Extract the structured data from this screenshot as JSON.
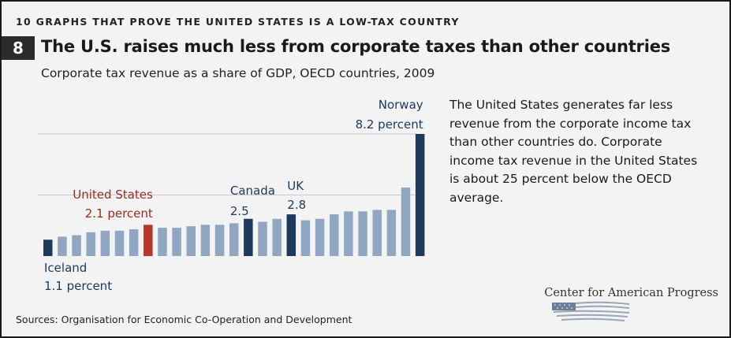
{
  "header": {
    "series_title": "10 GRAPHS THAT PROVE THE UNITED STATES IS A LOW-TAX COUNTRY",
    "number": "8",
    "headline": "The U.S. raises much less from corporate taxes than other countries",
    "subtitle": "Corporate tax revenue as a share of GDP, OECD countries, 2009"
  },
  "description": "The United States generates far less revenue from the corporate income tax than other countries do. Corporate income tax revenue in the United States is about 25 percent below the OECD average.",
  "source": "Sources: Organisation for Economic Co-Operation and Development",
  "logo": {
    "text": "Center for American Progress",
    "icon": "american-flag-icon"
  },
  "colors": {
    "default_bar": "#8fa7c3",
    "highlight_bar": "#1b3a5c",
    "us_bar": "#b5362f",
    "us_label": "#9b2a22",
    "label": "#1b3a5c"
  },
  "chart_data": {
    "type": "bar",
    "ylim": [
      0,
      8.2
    ],
    "grid": true,
    "values": [
      1.1,
      1.3,
      1.4,
      1.6,
      1.7,
      1.7,
      1.8,
      2.1,
      1.9,
      1.9,
      2.0,
      2.1,
      2.1,
      2.2,
      2.5,
      2.3,
      2.5,
      2.8,
      2.4,
      2.5,
      2.8,
      3.0,
      3.0,
      3.1,
      3.1,
      4.6,
      8.2
    ],
    "highlights": [
      {
        "index": 0,
        "style": "highlight",
        "name": "Iceland",
        "value_label": "1.1 percent"
      },
      {
        "index": 7,
        "style": "us",
        "name": "United States",
        "value_label": "2.1 percent"
      },
      {
        "index": 14,
        "style": "highlight",
        "name": "Canada",
        "value_label": "2.5"
      },
      {
        "index": 17,
        "style": "highlight",
        "name": "UK",
        "value_label": "2.8"
      },
      {
        "index": 26,
        "style": "highlight",
        "name": "Norway",
        "value_label": "8.2 percent"
      }
    ]
  }
}
